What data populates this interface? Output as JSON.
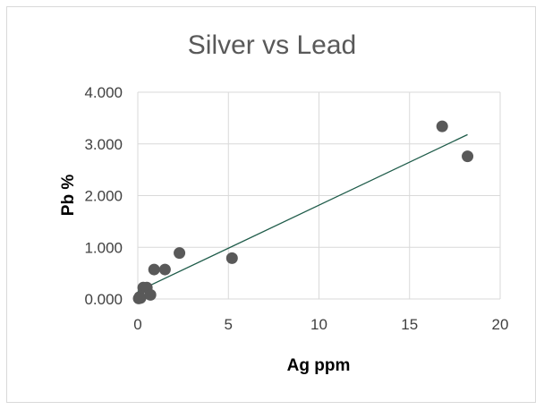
{
  "chart_data": {
    "type": "scatter",
    "title": "Silver vs Lead",
    "xlabel": "Ag ppm",
    "ylabel": "Pb %",
    "xlim": [
      0,
      20
    ],
    "ylim": [
      0,
      4
    ],
    "x_ticks": [
      "0",
      "5",
      "10",
      "15",
      "20"
    ],
    "y_ticks": [
      "0.000",
      "1.000",
      "2.000",
      "3.000",
      "4.000"
    ],
    "grid": true,
    "legend": "none",
    "marker_color": "#595959",
    "trendline_color": "#1f5c4a",
    "points": [
      {
        "x": 0.05,
        "y": 0.01
      },
      {
        "x": 0.1,
        "y": 0.04
      },
      {
        "x": 0.15,
        "y": 0.02
      },
      {
        "x": 0.3,
        "y": 0.22
      },
      {
        "x": 0.5,
        "y": 0.22
      },
      {
        "x": 0.7,
        "y": 0.08
      },
      {
        "x": 0.9,
        "y": 0.57
      },
      {
        "x": 1.5,
        "y": 0.57
      },
      {
        "x": 2.3,
        "y": 0.89
      },
      {
        "x": 5.2,
        "y": 0.79
      },
      {
        "x": 16.8,
        "y": 3.34
      },
      {
        "x": 18.2,
        "y": 2.76
      }
    ],
    "trendline": {
      "x": [
        0,
        18.2
      ],
      "y": [
        0.15,
        3.18
      ]
    }
  }
}
